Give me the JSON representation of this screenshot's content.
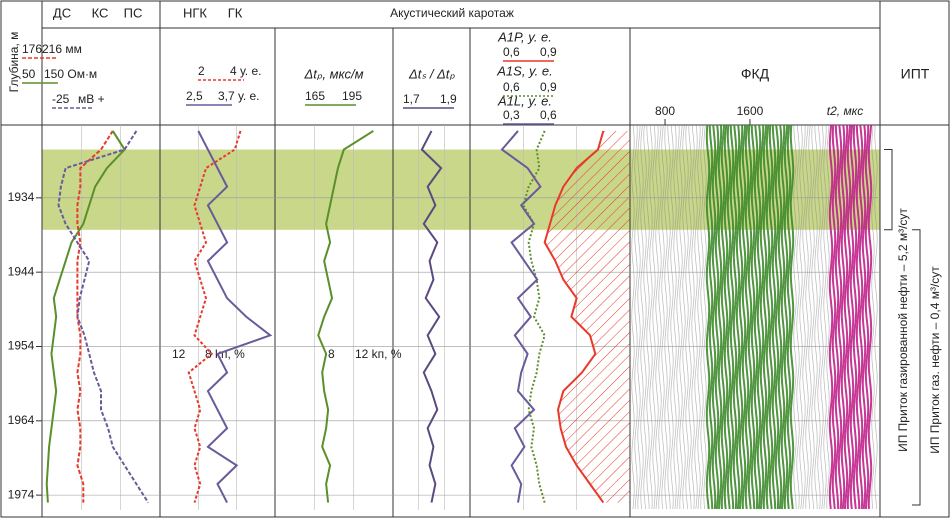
{
  "depth": {
    "label": "Глубина, м",
    "ylim": [
      1924.2,
      1976
    ],
    "yticks": [
      1934,
      1944,
      1954,
      1964,
      1974
    ],
    "x": [
      1925,
      1927.5,
      1930,
      1932.5,
      1935,
      1937.5,
      1940,
      1942.5,
      1945,
      1947.5,
      1950,
      1952.5,
      1955,
      1957.5,
      1960,
      1962.5,
      1965,
      1967.5,
      1970,
      1972.5,
      1975
    ]
  },
  "productive_interval": [
    1927.5,
    1938.3
  ],
  "group_title": "Акустический каротаж",
  "tracks": [
    {
      "headers": [
        "ДС",
        "КС",
        "ПС"
      ],
      "curves": [
        {
          "scale": [
            "176",
            "216 мм"
          ],
          "color": "#e8392a",
          "dash": "4 2",
          "xlim": [
            176,
            216
          ],
          "values": [
            200,
            196,
            189,
            189,
            188,
            188,
            189,
            188,
            188,
            188,
            188,
            189,
            189,
            188,
            189,
            188,
            189,
            189,
            188,
            190,
            190
          ]
        },
        {
          "scale": [
            "50",
            "150 Ом·м"
          ],
          "color": "#5a8f2a",
          "dash": "",
          "xlim": [
            50,
            150
          ],
          "values": [
            110,
            120,
            105,
            95,
            90,
            85,
            75,
            70,
            65,
            60,
            62,
            60,
            58,
            60,
            62,
            60,
            58,
            56,
            55,
            54,
            55
          ]
        },
        {
          "scale": [
            "-25",
            "мВ +"
          ],
          "color": "#6a5a9a",
          "dash": "4 2",
          "xlim": [
            -40,
            10
          ],
          "values": [
            0,
            -5,
            -30,
            -32,
            -33,
            -30,
            -25,
            -20,
            -22,
            -24,
            -25,
            -22,
            -20,
            -18,
            -15,
            -15,
            -12,
            -10,
            -5,
            0,
            5
          ]
        }
      ]
    },
    {
      "headers": [
        "НГК",
        "ГК"
      ],
      "overlay": [
        "12",
        "8 kп, %"
      ],
      "curves": [
        {
          "scale": [
            "2",
            "4 у. е."
          ],
          "color": "#e8392a",
          "dash": "3 2",
          "xlim": [
            2,
            4
          ],
          "values": [
            3.4,
            3.3,
            2.8,
            2.7,
            2.6,
            2.7,
            2.8,
            2.6,
            2.7,
            2.8,
            2.7,
            2.6,
            2.9,
            2.5,
            2.6,
            2.7,
            2.6,
            2.7,
            2.6,
            2.7,
            2.6
          ]
        },
        {
          "scale": [
            "2,5",
            "3,7 у. е."
          ],
          "color": "#6a5a9a",
          "dash": "",
          "xlim": [
            2.5,
            3.7
          ],
          "values": [
            2.9,
            3.0,
            3.1,
            3.2,
            3.0,
            3.1,
            3.2,
            3.0,
            3.1,
            3.2,
            3.4,
            3.65,
            3.1,
            3.2,
            3.0,
            3.1,
            3.2,
            3.0,
            3.3,
            3.1,
            3.2
          ]
        }
      ]
    },
    {
      "headers": [
        "Δtₚ, мкс/м"
      ],
      "overlay": [
        "8",
        "12 kп, %"
      ],
      "curves": [
        {
          "scale": [
            "165",
            "195"
          ],
          "color": "#5a8f2a",
          "dash": "",
          "xlim": [
            150,
            210
          ],
          "values": [
            200,
            185,
            182,
            180,
            178,
            176,
            178,
            175,
            177,
            179,
            175,
            172,
            176,
            174,
            175,
            177,
            176,
            174,
            178,
            176,
            177
          ]
        }
      ]
    },
    {
      "headers": [
        "Δtₛ / Δtₚ"
      ],
      "curves": [
        {
          "scale": [
            "1,7",
            "1,9"
          ],
          "color": "#5a4a80",
          "dash": "",
          "xlim": [
            1.6,
            2.0
          ],
          "values": [
            1.8,
            1.75,
            1.85,
            1.78,
            1.82,
            1.76,
            1.83,
            1.79,
            1.81,
            1.77,
            1.84,
            1.78,
            1.82,
            1.76,
            1.8,
            1.83,
            1.78,
            1.81,
            1.79,
            1.82,
            1.8
          ]
        }
      ]
    },
    {
      "headers": [
        "A1P, у. е.",
        "A1S, у. е.",
        "A1L, у. е."
      ],
      "curves": [
        {
          "scale": [
            "0,6",
            "0,9"
          ],
          "color": "#e8392a",
          "dash": "",
          "hatch": true,
          "xlim": [
            0.5,
            1.1
          ],
          "values": [
            1.0,
            0.98,
            0.9,
            0.85,
            0.82,
            0.8,
            0.78,
            0.82,
            0.85,
            0.9,
            0.88,
            0.95,
            0.97,
            0.92,
            0.85,
            0.83,
            0.84,
            0.86,
            0.9,
            0.95,
            1.0
          ]
        },
        {
          "scale": [
            "0,6",
            "0,9"
          ],
          "color": "#5a8f2a",
          "dash": "2 2",
          "xlim": [
            0.5,
            1.1
          ],
          "values": [
            0.78,
            0.75,
            0.76,
            0.72,
            0.7,
            0.74,
            0.72,
            0.73,
            0.75,
            0.76,
            0.74,
            0.78,
            0.76,
            0.75,
            0.73,
            0.72,
            0.74,
            0.73,
            0.75,
            0.76,
            0.78
          ]
        },
        {
          "scale": [
            "0,3",
            "0,6"
          ],
          "color": "#6a5a9a",
          "dash": "",
          "xlim": [
            0.2,
            0.7
          ],
          "values": [
            0.35,
            0.3,
            0.38,
            0.42,
            0.36,
            0.4,
            0.33,
            0.37,
            0.41,
            0.35,
            0.39,
            0.34,
            0.38,
            0.36,
            0.35,
            0.4,
            0.34,
            0.37,
            0.33,
            0.36,
            0.35
          ]
        }
      ]
    }
  ],
  "fkd": {
    "title": "ФКД",
    "xlim": [
      470,
      2825
    ],
    "xticks": [
      800,
      1600
    ],
    "axis_label": "t2, мкс"
  },
  "ipt": {
    "title": "ИПТ",
    "notes": [
      "ИП Приток газированной нефти – 5,2 м³/сут",
      "ИП Приток газ. нефти – 0,4 м³/сут"
    ]
  }
}
